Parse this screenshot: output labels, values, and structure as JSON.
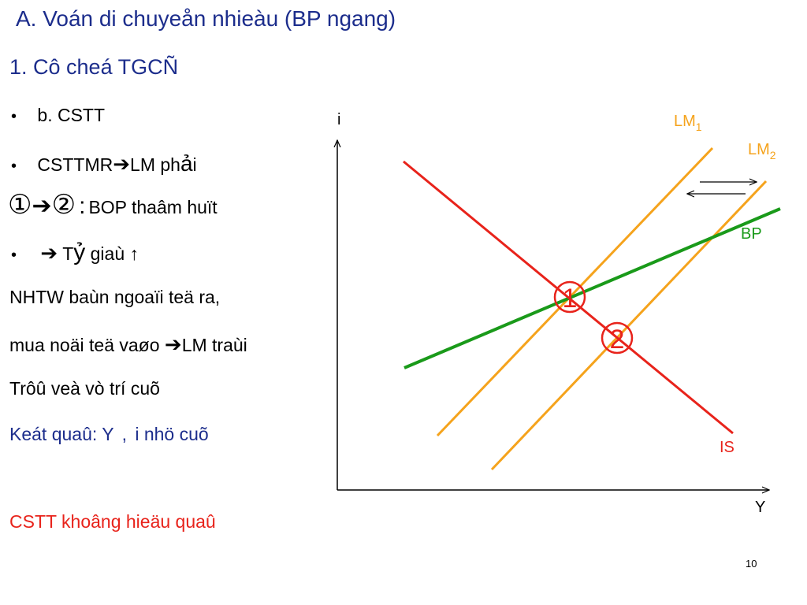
{
  "title": "A. Voán di chuyeån nhieàu (BP ngang)",
  "subtitle": "1. Cô cheá TGCÑ",
  "lines": {
    "l1_bullet": "•",
    "l1_text": "b. CSTT",
    "l2_bullet": "•",
    "l2_text_a": "CSTTMR",
    "l2_arrow": "➔",
    "l2_text_b": "LM ph",
    "l2_text_c": "ả",
    "l2_text_d": "i",
    "l3_c1": "①",
    "l3_arrow": "➔",
    "l3_c2": "②",
    "l3_colon": ":",
    "l3_text": "BOP   thaâm huït",
    "l4_bullet": "•",
    "l4_arrow": "➔",
    "l4_text_a": "T",
    "l4_text_b": "ỷ",
    "l4_text_c": "giaù",
    "l4_uparrow": "↑",
    "l5": "NHTW baùn ngoaïi teä ra,",
    "l6_a": "mua noäi teä vaøo",
    "l6_arrow": "➔",
    "l6_b": "LM traùi",
    "l7": "Trôû veà vò trí cuõ",
    "l8_a": "Keát quaû: Y",
    "l8_comma": ",",
    "l8_b": "i nhö cuõ",
    "l9": "CSTT khoâng hieäu quaû"
  },
  "diagram": {
    "y_axis_label": "i",
    "x_axis_label": "Y",
    "lm1_base": "LM",
    "lm1_sub": "1",
    "lm2_base": "LM",
    "lm2_sub": "2",
    "bp_label": "BP",
    "is_label": "IS",
    "point1": "1",
    "point2": "2"
  },
  "colors": {
    "title_blue": "#1c2d8c",
    "is_red": "#e8231b",
    "lm_orange": "#f5a31c",
    "bp_green": "#1a9a1a"
  },
  "page_number": "10"
}
